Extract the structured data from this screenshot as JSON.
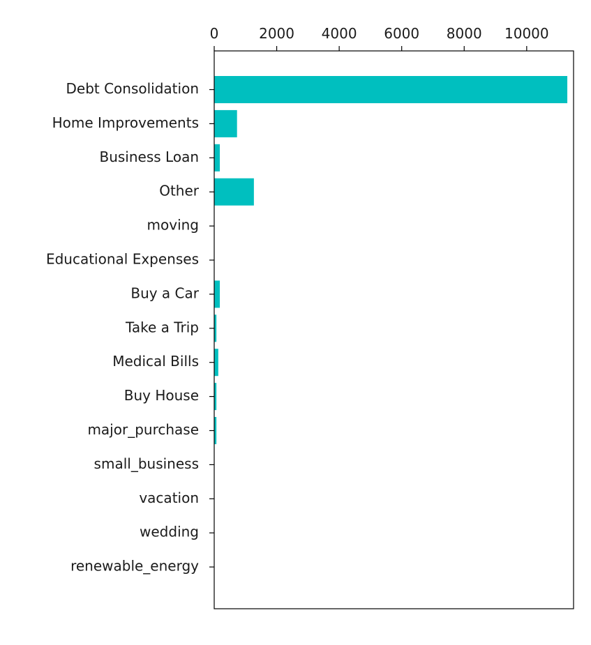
{
  "chart_data": {
    "type": "bar",
    "orientation": "horizontal",
    "x_axis_position": "top",
    "title": "",
    "xlabel": "",
    "ylabel": "",
    "xlim": [
      0,
      11500
    ],
    "xticks": [
      0,
      2000,
      4000,
      6000,
      8000,
      10000
    ],
    "grid": false,
    "categories": [
      "Debt Consolidation",
      "Home Improvements",
      "Business Loan",
      "Other",
      "moving",
      "Educational Expenses",
      "Buy a Car",
      "Take a Trip",
      "Medical Bills",
      "Buy House",
      "major_purchase",
      "small_business",
      "vacation",
      "wedding",
      "renewable_energy"
    ],
    "values": [
      11300,
      730,
      180,
      1270,
      0,
      0,
      180,
      70,
      130,
      70,
      70,
      0,
      0,
      0,
      0
    ],
    "bar_color": "#00bfbf"
  }
}
